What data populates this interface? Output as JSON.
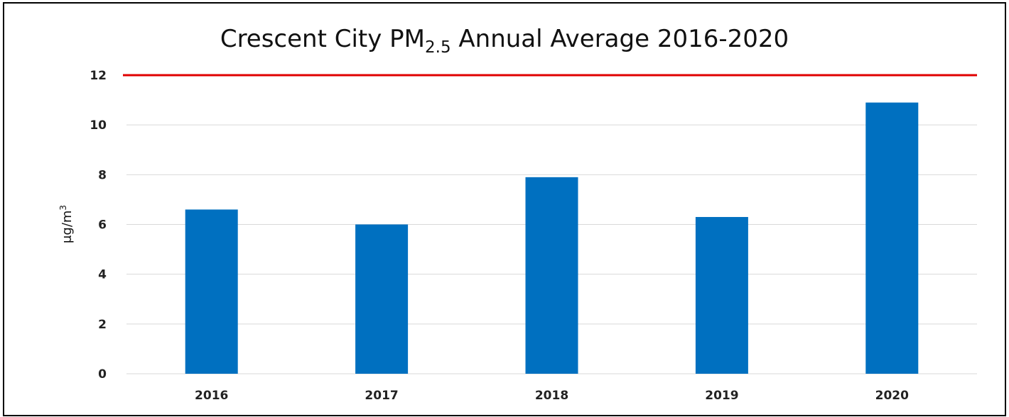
{
  "chart_data": {
    "type": "bar",
    "title_parts": [
      "Crescent City PM",
      "2.5",
      " Annual Average 2016-2020"
    ],
    "y_label_parts": [
      "μg/m",
      "3"
    ],
    "categories": [
      "2016",
      "2017",
      "2018",
      "2019",
      "2020"
    ],
    "values": [
      6.6,
      6.0,
      7.9,
      6.3,
      10.9
    ],
    "color": "#0070c0",
    "ylim": [
      0,
      12
    ],
    "yticks": [
      0,
      2,
      4,
      6,
      8,
      10,
      12
    ],
    "grid": true,
    "reference_line": {
      "value": 12,
      "color": "#e00000"
    }
  }
}
